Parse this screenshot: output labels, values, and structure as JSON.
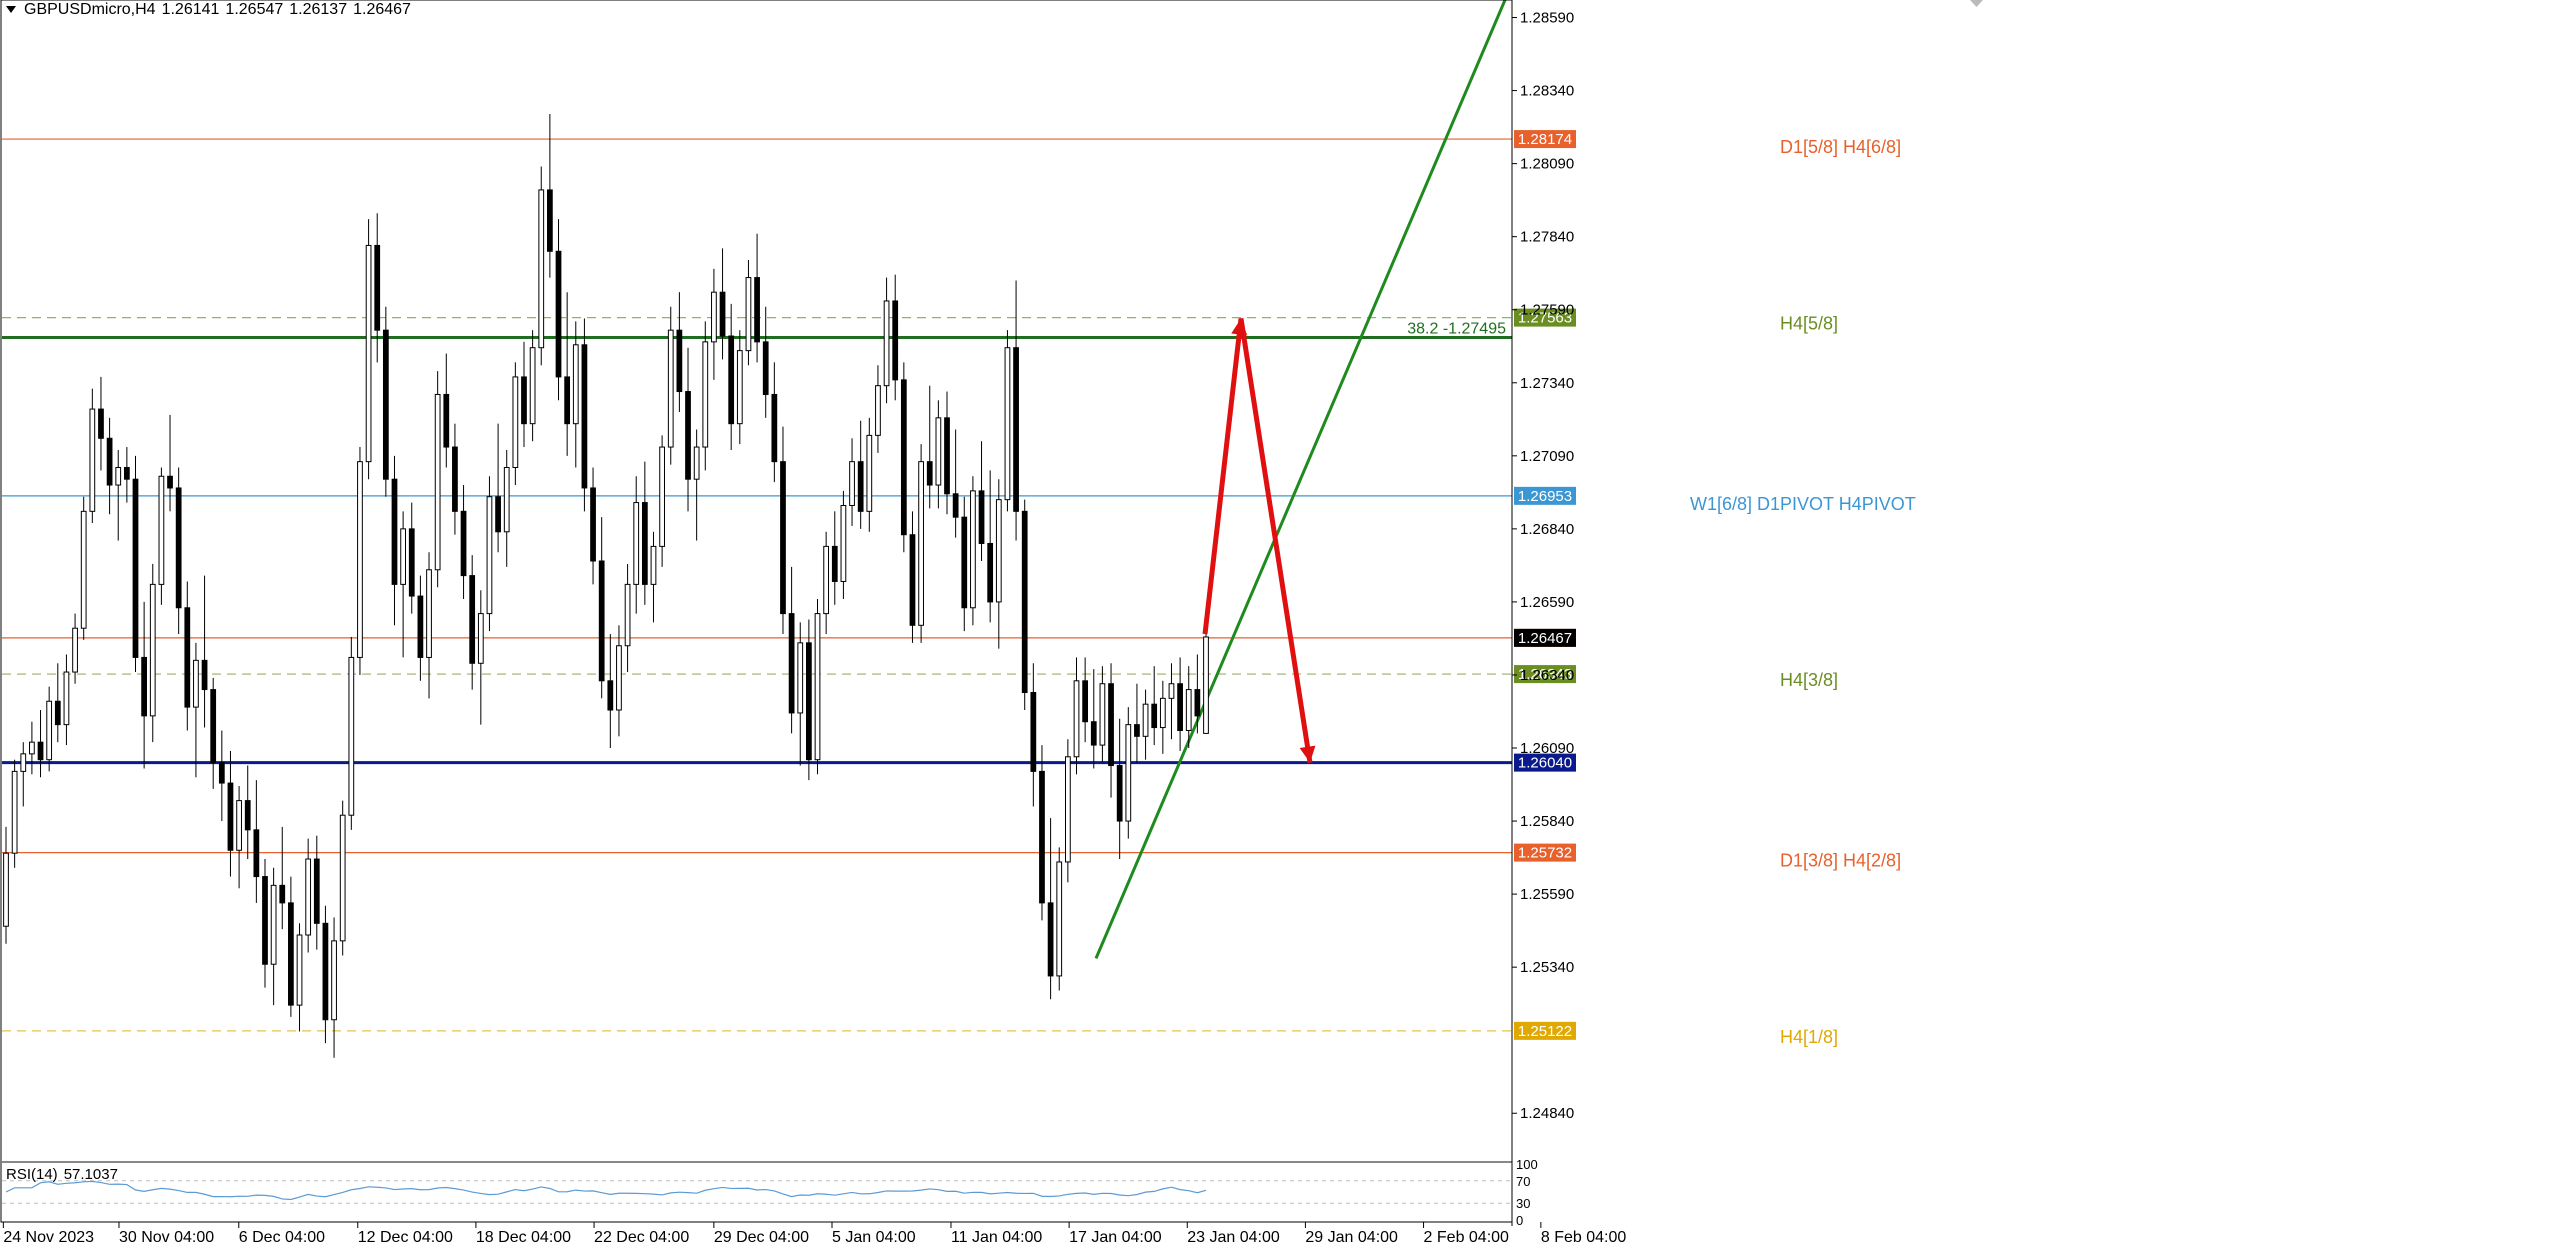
{
  "header": {
    "symbol": "GBPUSDmicro,H4",
    "open": "1.26141",
    "high": "1.26547",
    "low": "1.26137",
    "close": "1.26467"
  },
  "colors": {
    "candle_body_up": "#ffffff",
    "candle_body_down": "#000000",
    "wick": "#000000",
    "murrey_orange": "#e8602c",
    "murrey_green": "#6b8e23",
    "pivot_blue": "#3b97d3",
    "support_navy": "#0a1a8c",
    "fib_green": "#1f6e1f",
    "yellow_level": "#e0a800",
    "trend_green": "#1f8a1f",
    "forecast_red": "#e01010",
    "rsi_line": "#5b9bd5"
  },
  "chart_data": {
    "type": "candlestick",
    "symbol": "GBPUSDmicro",
    "timeframe": "H4",
    "ylim": [
      1.2468,
      1.2865
    ],
    "y_ticks": [
      "1.25340",
      "1.25590",
      "1.25840",
      "1.26090",
      "1.26340",
      "1.26590",
      "1.26840",
      "1.27090",
      "1.27340",
      "1.27590",
      "1.27840",
      "1.28090",
      "1.28340",
      "1.28590",
      "1.24840"
    ],
    "x_labels": [
      "24 Nov 2023",
      "30 Nov 04:00",
      "6 Dec 04:00",
      "12 Dec 04:00",
      "18 Dec 04:00",
      "22 Dec 04:00",
      "29 Dec 04:00",
      "5 Jan 04:00",
      "11 Jan 04:00",
      "17 Jan 04:00",
      "23 Jan 04:00",
      "29 Jan 04:00",
      "2 Feb 04:00",
      "8 Feb 04:00"
    ],
    "levels": [
      {
        "price": 1.28174,
        "tag": "1.28174",
        "label": "D1[5/8] H4[6/8]",
        "style": "solid",
        "color": "#e8602c"
      },
      {
        "price": 1.27563,
        "tag": "1.27563",
        "label": "H4[5/8]",
        "style": "dashed",
        "color": "#6b8e23"
      },
      {
        "price": 1.26953,
        "tag": "1.26953",
        "label": "W1[6/8] D1PIVOT H4PIVOT",
        "style": "solid",
        "color": "#3b97d3"
      },
      {
        "price": 1.26467,
        "tag": "1.26467",
        "label": "",
        "style": "solid",
        "color": "#e8602c"
      },
      {
        "price": 1.26343,
        "tag": "1.26343",
        "label": "H4[3/8]",
        "style": "dashed",
        "color": "#6b8e23"
      },
      {
        "price": 1.2604,
        "tag": "1.26040",
        "label": "",
        "style": "solid",
        "color": "#0a1a8c"
      },
      {
        "price": 1.25732,
        "tag": "1.25732",
        "label": "D1[3/8] H4[2/8]",
        "style": "solid",
        "color": "#e8602c"
      },
      {
        "price": 1.25122,
        "tag": "1.25122",
        "label": "H4[1/8]",
        "style": "dashed",
        "color": "#e0a800"
      }
    ],
    "fib_line": {
      "price": 1.27495,
      "label": "38.2 -1.27495"
    },
    "trendline": {
      "x1": 1096,
      "y1": 1.2537,
      "x2": 1505,
      "y2": 1.2865
    },
    "forecast_path": [
      [
        1205,
        1.2648
      ],
      [
        1241,
        1.2756
      ],
      [
        1310,
        1.2604
      ]
    ],
    "rsi": {
      "period": 14,
      "value": "57.1037",
      "label": "RSI(14)",
      "levels": [
        "100",
        "70",
        "30",
        "0"
      ]
    },
    "candles": [
      [
        1.2548,
        1.2582,
        1.2542,
        1.2573
      ],
      [
        1.2573,
        1.2605,
        1.2568,
        1.2601
      ],
      [
        1.2601,
        1.2611,
        1.2589,
        1.2607
      ],
      [
        1.2607,
        1.2618,
        1.26,
        1.2611
      ],
      [
        1.2611,
        1.2622,
        1.2599,
        1.2605
      ],
      [
        1.2605,
        1.263,
        1.2601,
        1.2625
      ],
      [
        1.2625,
        1.2638,
        1.2611,
        1.2617
      ],
      [
        1.2617,
        1.2641,
        1.261,
        1.2635
      ],
      [
        1.2635,
        1.2655,
        1.2631,
        1.265
      ],
      [
        1.265,
        1.2695,
        1.2646,
        1.269
      ],
      [
        1.269,
        1.2732,
        1.2686,
        1.2725
      ],
      [
        1.2725,
        1.2736,
        1.2704,
        1.2715
      ],
      [
        1.2715,
        1.2722,
        1.2689,
        1.2699
      ],
      [
        1.2699,
        1.2711,
        1.268,
        1.2705
      ],
      [
        1.2705,
        1.2712,
        1.2693,
        1.2701
      ],
      [
        1.2701,
        1.2709,
        1.2635,
        1.264
      ],
      [
        1.264,
        1.2659,
        1.2602,
        1.262
      ],
      [
        1.262,
        1.2672,
        1.2611,
        1.2665
      ],
      [
        1.2665,
        1.2705,
        1.2658,
        1.2702
      ],
      [
        1.2702,
        1.2723,
        1.269,
        1.2698
      ],
      [
        1.2698,
        1.2705,
        1.2648,
        1.2657
      ],
      [
        1.2657,
        1.2666,
        1.2615,
        1.2623
      ],
      [
        1.2623,
        1.2645,
        1.2599,
        1.2639
      ],
      [
        1.2639,
        1.2668,
        1.2616,
        1.2629
      ],
      [
        1.2629,
        1.2633,
        1.2595,
        1.2604
      ],
      [
        1.2604,
        1.2615,
        1.2584,
        1.2597
      ],
      [
        1.2597,
        1.2608,
        1.2565,
        1.2574
      ],
      [
        1.2574,
        1.2596,
        1.2561,
        1.2591
      ],
      [
        1.2591,
        1.2603,
        1.2571,
        1.2581
      ],
      [
        1.2581,
        1.2598,
        1.2556,
        1.2565
      ],
      [
        1.2565,
        1.2571,
        1.2527,
        1.2535
      ],
      [
        1.2535,
        1.2568,
        1.2521,
        1.2562
      ],
      [
        1.2562,
        1.2582,
        1.2547,
        1.2556
      ],
      [
        1.2556,
        1.2565,
        1.2517,
        1.2521
      ],
      [
        1.2521,
        1.2549,
        1.2512,
        1.2545
      ],
      [
        1.2545,
        1.2578,
        1.2539,
        1.2571
      ],
      [
        1.2571,
        1.2579,
        1.254,
        1.2549
      ],
      [
        1.2549,
        1.2555,
        1.2508,
        1.2516
      ],
      [
        1.2516,
        1.2551,
        1.2503,
        1.2543
      ],
      [
        1.2543,
        1.2591,
        1.2538,
        1.2586
      ],
      [
        1.2586,
        1.2647,
        1.2581,
        1.264
      ],
      [
        1.264,
        1.2712,
        1.2634,
        1.2707
      ],
      [
        1.2707,
        1.279,
        1.2701,
        1.2781
      ],
      [
        1.2781,
        1.2792,
        1.2741,
        1.2752
      ],
      [
        1.2752,
        1.276,
        1.2695,
        1.2701
      ],
      [
        1.2701,
        1.2709,
        1.2651,
        1.2665
      ],
      [
        1.2665,
        1.269,
        1.264,
        1.2684
      ],
      [
        1.2684,
        1.2693,
        1.2655,
        1.2661
      ],
      [
        1.2661,
        1.2668,
        1.2632,
        1.264
      ],
      [
        1.264,
        1.2676,
        1.2626,
        1.267
      ],
      [
        1.267,
        1.2738,
        1.2664,
        1.273
      ],
      [
        1.273,
        1.2744,
        1.2705,
        1.2712
      ],
      [
        1.2712,
        1.272,
        1.2682,
        1.269
      ],
      [
        1.269,
        1.2699,
        1.266,
        1.2668
      ],
      [
        1.2668,
        1.2675,
        1.2629,
        1.2638
      ],
      [
        1.2638,
        1.2663,
        1.2617,
        1.2655
      ],
      [
        1.2655,
        1.2702,
        1.2649,
        1.2695
      ],
      [
        1.2695,
        1.272,
        1.2676,
        1.2683
      ],
      [
        1.2683,
        1.2711,
        1.2671,
        1.2705
      ],
      [
        1.2705,
        1.2741,
        1.2699,
        1.2736
      ],
      [
        1.2736,
        1.2748,
        1.2712,
        1.272
      ],
      [
        1.272,
        1.2752,
        1.2714,
        1.2746
      ],
      [
        1.2746,
        1.2808,
        1.274,
        1.28
      ],
      [
        1.28,
        1.2826,
        1.277,
        1.2779
      ],
      [
        1.2779,
        1.279,
        1.2728,
        1.2736
      ],
      [
        1.2736,
        1.2765,
        1.2709,
        1.272
      ],
      [
        1.272,
        1.2755,
        1.2705,
        1.2747
      ],
      [
        1.2747,
        1.2756,
        1.269,
        1.2698
      ],
      [
        1.2698,
        1.2705,
        1.2665,
        1.2673
      ],
      [
        1.2673,
        1.2688,
        1.2626,
        1.2632
      ],
      [
        1.2632,
        1.2648,
        1.2609,
        1.2622
      ],
      [
        1.2622,
        1.2651,
        1.2613,
        1.2644
      ],
      [
        1.2644,
        1.2672,
        1.2635,
        1.2665
      ],
      [
        1.2665,
        1.2702,
        1.2655,
        1.2693
      ],
      [
        1.2693,
        1.2707,
        1.2658,
        1.2665
      ],
      [
        1.2665,
        1.2683,
        1.2652,
        1.2678
      ],
      [
        1.2678,
        1.2716,
        1.2671,
        1.2712
      ],
      [
        1.2712,
        1.276,
        1.2706,
        1.2752
      ],
      [
        1.2752,
        1.2765,
        1.2724,
        1.2731
      ],
      [
        1.2731,
        1.2746,
        1.269,
        1.2701
      ],
      [
        1.2701,
        1.2718,
        1.268,
        1.2712
      ],
      [
        1.2712,
        1.2755,
        1.2704,
        1.2748
      ],
      [
        1.2748,
        1.2773,
        1.2735,
        1.2765
      ],
      [
        1.2765,
        1.278,
        1.2742,
        1.275
      ],
      [
        1.275,
        1.2761,
        1.2711,
        1.272
      ],
      [
        1.272,
        1.2752,
        1.2713,
        1.2745
      ],
      [
        1.2745,
        1.2776,
        1.274,
        1.277
      ],
      [
        1.277,
        1.2785,
        1.2741,
        1.2748
      ],
      [
        1.2748,
        1.276,
        1.2722,
        1.273
      ],
      [
        1.273,
        1.2741,
        1.27,
        1.2707
      ],
      [
        1.2707,
        1.2719,
        1.2648,
        1.2655
      ],
      [
        1.2655,
        1.2671,
        1.2614,
        1.2621
      ],
      [
        1.2621,
        1.2652,
        1.2603,
        1.2645
      ],
      [
        1.2645,
        1.2653,
        1.2598,
        1.2605
      ],
      [
        1.2605,
        1.266,
        1.26,
        1.2655
      ],
      [
        1.2655,
        1.2683,
        1.2648,
        1.2678
      ],
      [
        1.2678,
        1.269,
        1.2658,
        1.2666
      ],
      [
        1.2666,
        1.2697,
        1.266,
        1.2692
      ],
      [
        1.2692,
        1.2715,
        1.2685,
        1.2707
      ],
      [
        1.2707,
        1.2721,
        1.2684,
        1.269
      ],
      [
        1.269,
        1.2722,
        1.2683,
        1.2716
      ],
      [
        1.2716,
        1.274,
        1.271,
        1.2733
      ],
      [
        1.2733,
        1.277,
        1.2727,
        1.2762
      ],
      [
        1.2762,
        1.2771,
        1.2728,
        1.2735
      ],
      [
        1.2735,
        1.2741,
        1.2676,
        1.2682
      ],
      [
        1.2682,
        1.269,
        1.2645,
        1.2651
      ],
      [
        1.2651,
        1.2713,
        1.2645,
        1.2707
      ],
      [
        1.2707,
        1.2733,
        1.2691,
        1.2699
      ],
      [
        1.2699,
        1.2728,
        1.2691,
        1.2722
      ],
      [
        1.2722,
        1.2731,
        1.2689,
        1.2696
      ],
      [
        1.2696,
        1.2718,
        1.2681,
        1.2688
      ],
      [
        1.2688,
        1.2695,
        1.2649,
        1.2657
      ],
      [
        1.2657,
        1.2702,
        1.2651,
        1.2697
      ],
      [
        1.2697,
        1.2714,
        1.2673,
        1.2679
      ],
      [
        1.2679,
        1.2704,
        1.2652,
        1.2659
      ],
      [
        1.2659,
        1.2701,
        1.2643,
        1.2694
      ],
      [
        1.2694,
        1.2752,
        1.269,
        1.2746
      ],
      [
        1.2746,
        1.2769,
        1.268,
        1.269
      ],
      [
        1.269,
        1.2694,
        1.2622,
        1.2628
      ],
      [
        1.2628,
        1.2638,
        1.2589,
        1.2601
      ],
      [
        1.2601,
        1.261,
        1.255,
        1.2556
      ],
      [
        1.2556,
        1.2585,
        1.2523,
        1.2531
      ],
      [
        1.2531,
        1.2575,
        1.2526,
        1.257
      ],
      [
        1.257,
        1.2612,
        1.2563,
        1.2606
      ],
      [
        1.2606,
        1.264,
        1.26,
        1.2632
      ],
      [
        1.2632,
        1.264,
        1.2611,
        1.2618
      ],
      [
        1.2618,
        1.2636,
        1.2602,
        1.261
      ],
      [
        1.261,
        1.2637,
        1.2604,
        1.2631
      ],
      [
        1.2631,
        1.2638,
        1.2592,
        1.2603
      ],
      [
        1.2603,
        1.2619,
        1.2571,
        1.2584
      ],
      [
        1.2584,
        1.2623,
        1.2578,
        1.2617
      ],
      [
        1.2617,
        1.2631,
        1.2604,
        1.2613
      ],
      [
        1.2613,
        1.2629,
        1.2605,
        1.2624
      ],
      [
        1.2624,
        1.2637,
        1.261,
        1.2616
      ],
      [
        1.2616,
        1.2632,
        1.2607,
        1.2626
      ],
      [
        1.2626,
        1.2638,
        1.2612,
        1.2631
      ],
      [
        1.2631,
        1.264,
        1.2608,
        1.2615
      ],
      [
        1.2615,
        1.2637,
        1.2609,
        1.2629
      ],
      [
        1.2629,
        1.2641,
        1.2614,
        1.262
      ],
      [
        1.2614,
        1.2655,
        1.2614,
        1.2647
      ]
    ]
  }
}
